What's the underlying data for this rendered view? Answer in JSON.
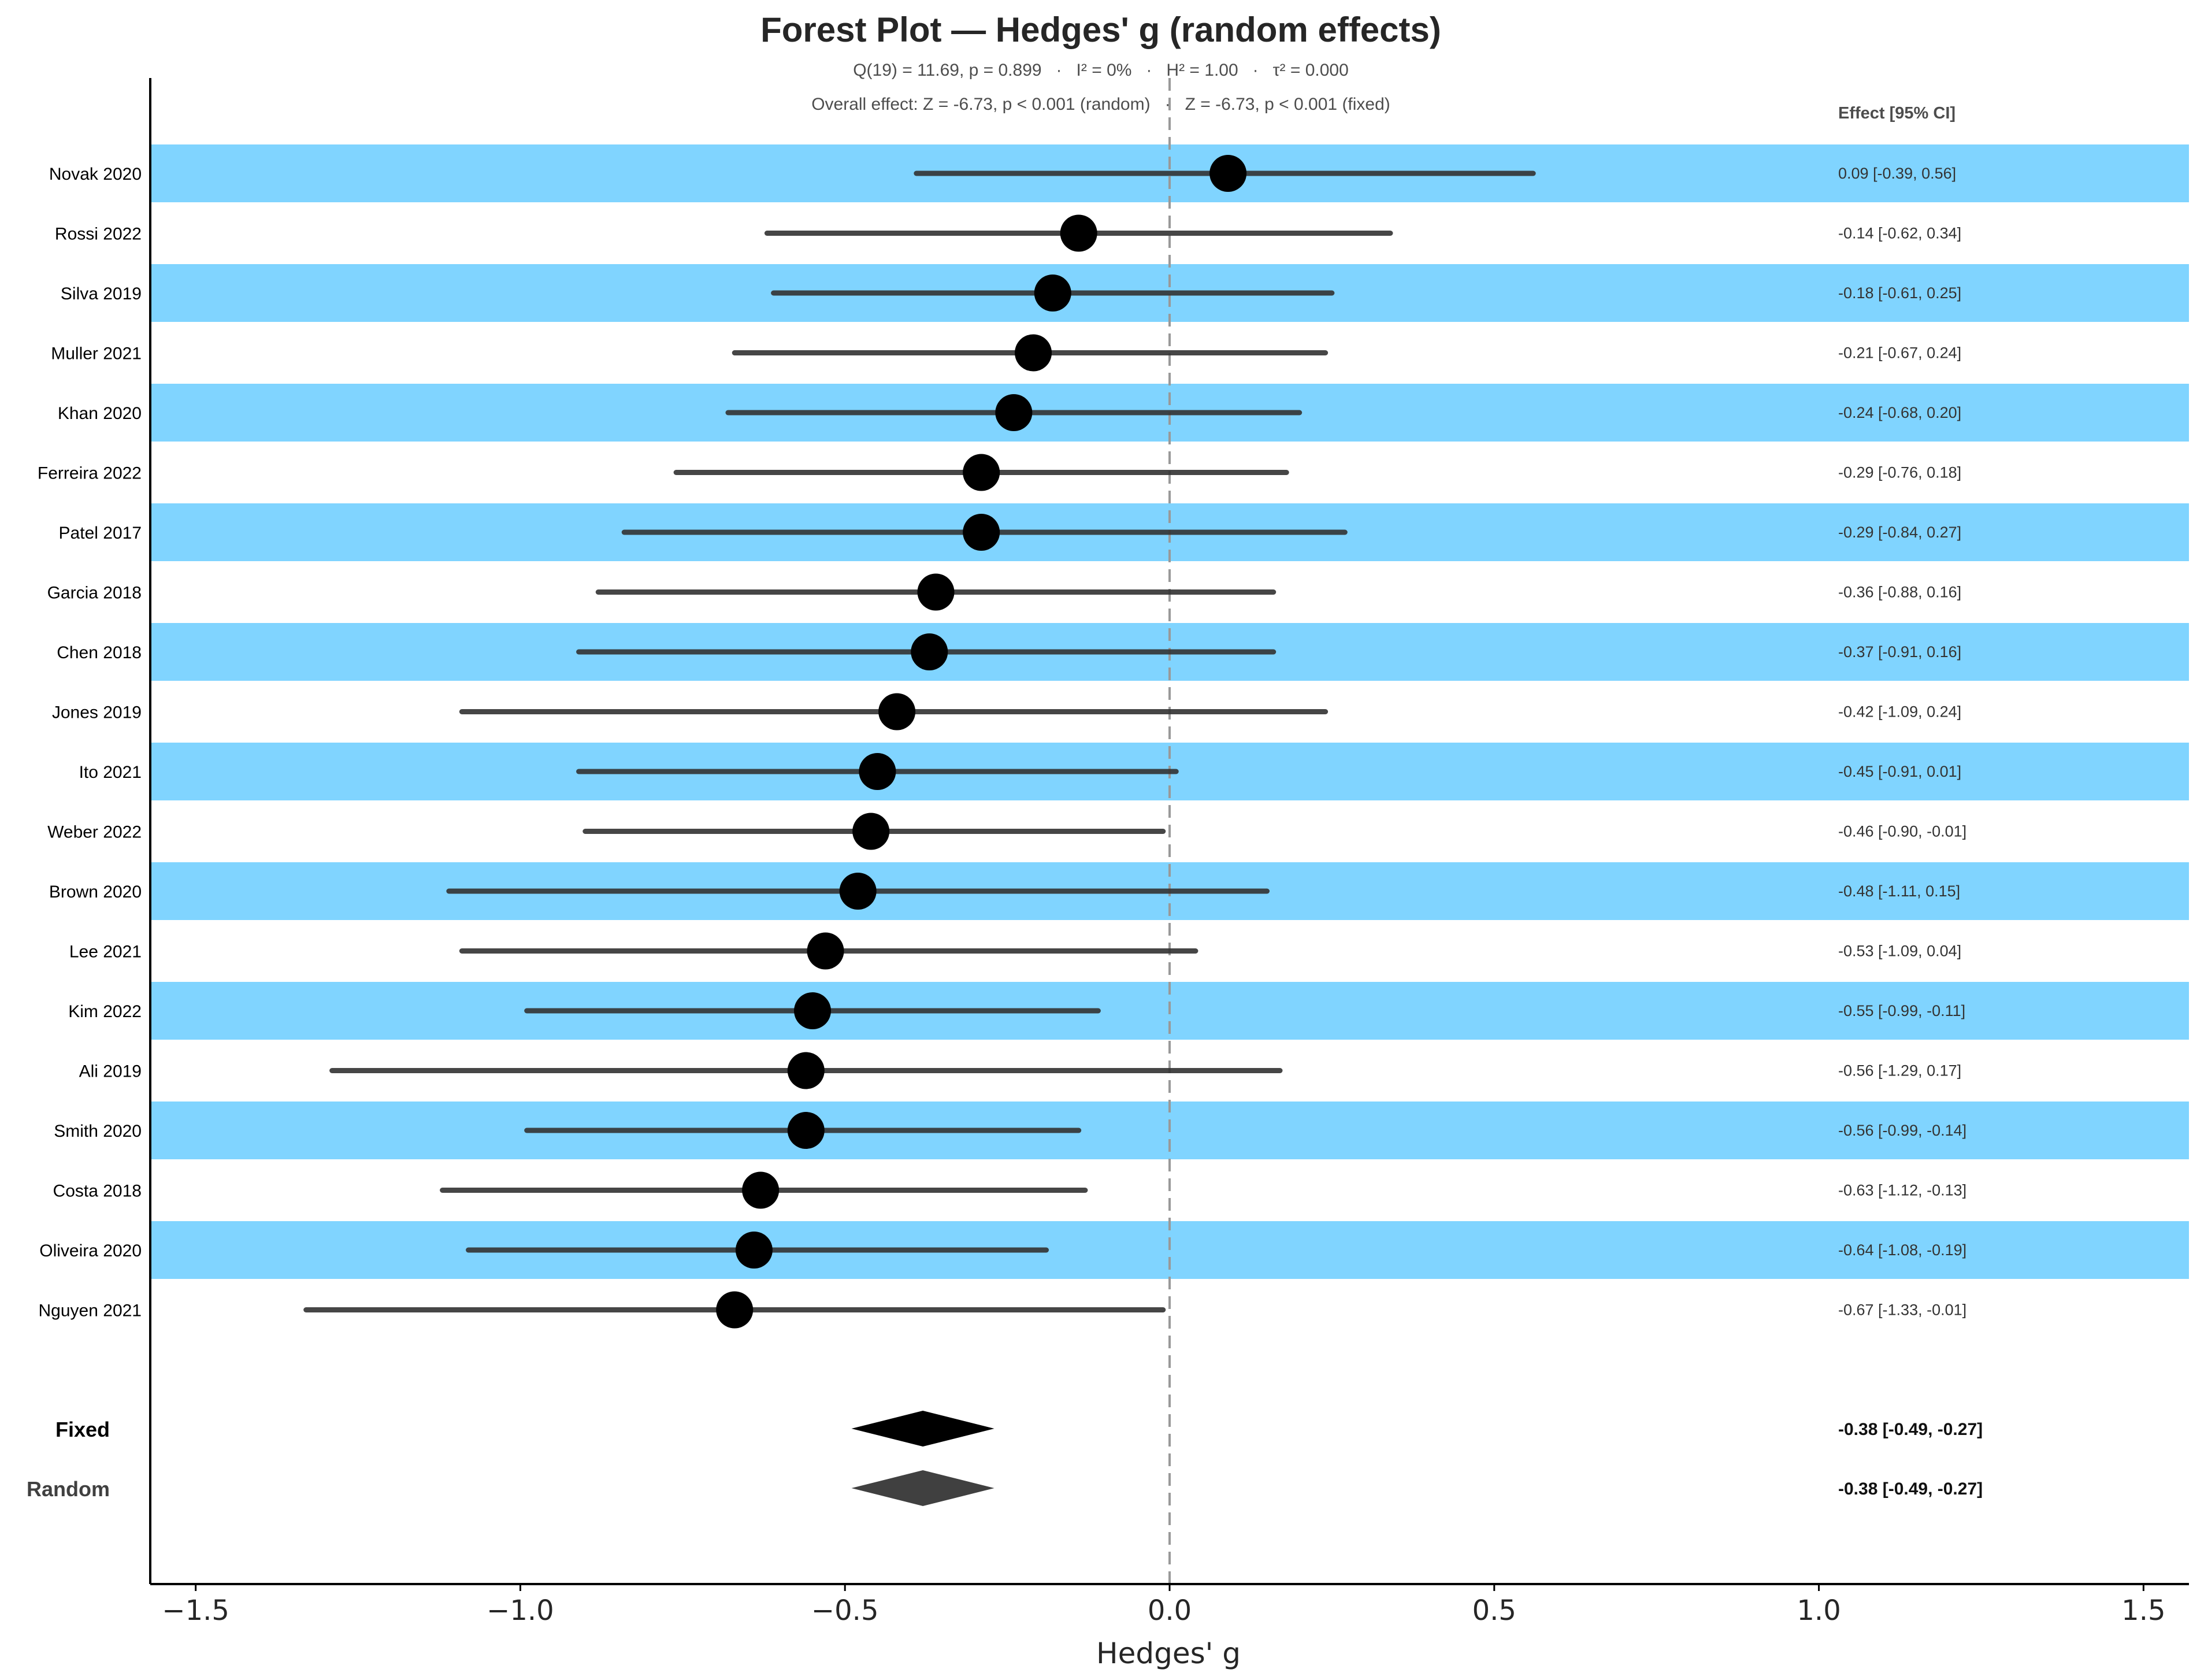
{
  "chart_data": {
    "type": "forest",
    "title": "Forest Plot — Hedges' g (random effects)",
    "subtitle_line1": "Q(19) = 11.69, p = 0.899   ·   I² = 0%   ·   H² = 1.00   ·   τ² = 0.000",
    "subtitle_line2": "Overall effect: Z = -6.73, p < 0.001 (random)   ·   Z = -6.73, p < 0.001 (fixed)",
    "xlabel": "Hedges' g",
    "xlim": [
      -1.57,
      1.57
    ],
    "xticks": [
      -1.5,
      -1.0,
      -0.5,
      0.0,
      0.5,
      1.0,
      1.5
    ],
    "xtick_labels": [
      "−1.5",
      "−1.0",
      "−0.5",
      "0.0",
      "0.5",
      "1.0",
      "1.5"
    ],
    "reference_line": 0.0,
    "ci_column_header": "Effect [95% CI]",
    "colors": {
      "band": "#80d4ff",
      "marker": "#000000",
      "ci_line": "#333333",
      "fixed_diamond": "#000000",
      "random_diamond": "#404040",
      "ref_line": "#999999"
    },
    "studies": [
      {
        "name": "Novak 2020",
        "g": 0.09,
        "lo": -0.39,
        "hi": 0.56,
        "label": "0.09 [-0.39, 0.56]"
      },
      {
        "name": "Rossi 2022",
        "g": -0.14,
        "lo": -0.62,
        "hi": 0.34,
        "label": "-0.14 [-0.62, 0.34]"
      },
      {
        "name": "Silva 2019",
        "g": -0.18,
        "lo": -0.61,
        "hi": 0.25,
        "label": "-0.18 [-0.61, 0.25]"
      },
      {
        "name": "Muller 2021",
        "g": -0.21,
        "lo": -0.67,
        "hi": 0.24,
        "label": "-0.21 [-0.67, 0.24]"
      },
      {
        "name": "Khan 2020",
        "g": -0.24,
        "lo": -0.68,
        "hi": 0.2,
        "label": "-0.24 [-0.68, 0.20]"
      },
      {
        "name": "Ferreira 2022",
        "g": -0.29,
        "lo": -0.76,
        "hi": 0.18,
        "label": "-0.29 [-0.76, 0.18]"
      },
      {
        "name": "Patel 2017",
        "g": -0.29,
        "lo": -0.84,
        "hi": 0.27,
        "label": "-0.29 [-0.84, 0.27]"
      },
      {
        "name": "Garcia 2018",
        "g": -0.36,
        "lo": -0.88,
        "hi": 0.16,
        "label": "-0.36 [-0.88, 0.16]"
      },
      {
        "name": "Chen 2018",
        "g": -0.37,
        "lo": -0.91,
        "hi": 0.16,
        "label": "-0.37 [-0.91, 0.16]"
      },
      {
        "name": "Jones 2019",
        "g": -0.42,
        "lo": -1.09,
        "hi": 0.24,
        "label": "-0.42 [-1.09, 0.24]"
      },
      {
        "name": "Ito 2021",
        "g": -0.45,
        "lo": -0.91,
        "hi": 0.01,
        "label": "-0.45 [-0.91, 0.01]"
      },
      {
        "name": "Weber 2022",
        "g": -0.46,
        "lo": -0.9,
        "hi": -0.01,
        "label": "-0.46 [-0.90, -0.01]"
      },
      {
        "name": "Brown 2020",
        "g": -0.48,
        "lo": -1.11,
        "hi": 0.15,
        "label": "-0.48 [-1.11, 0.15]"
      },
      {
        "name": "Lee 2021",
        "g": -0.53,
        "lo": -1.09,
        "hi": 0.04,
        "label": "-0.53 [-1.09, 0.04]"
      },
      {
        "name": "Kim 2022",
        "g": -0.55,
        "lo": -0.99,
        "hi": -0.11,
        "label": "-0.55 [-0.99, -0.11]"
      },
      {
        "name": "Ali 2019",
        "g": -0.56,
        "lo": -1.29,
        "hi": 0.17,
        "label": "-0.56 [-1.29, 0.17]"
      },
      {
        "name": "Smith 2020",
        "g": -0.56,
        "lo": -0.99,
        "hi": -0.14,
        "label": "-0.56 [-0.99, -0.14]"
      },
      {
        "name": "Costa 2018",
        "g": -0.63,
        "lo": -1.12,
        "hi": -0.13,
        "label": "-0.63 [-1.12, -0.13]"
      },
      {
        "name": "Oliveira 2020",
        "g": -0.64,
        "lo": -1.08,
        "hi": -0.19,
        "label": "-0.64 [-1.08, -0.19]"
      },
      {
        "name": "Nguyen 2021",
        "g": -0.67,
        "lo": -1.33,
        "hi": -0.01,
        "label": "-0.67 [-1.33, -0.01]"
      }
    ],
    "pooled": [
      {
        "name": "Fixed",
        "g": -0.38,
        "lo": -0.49,
        "hi": -0.27,
        "label": "-0.38 [-0.49, -0.27]"
      },
      {
        "name": "Random",
        "g": -0.38,
        "lo": -0.49,
        "hi": -0.27,
        "label": "-0.38 [-0.49, -0.27]"
      }
    ]
  }
}
